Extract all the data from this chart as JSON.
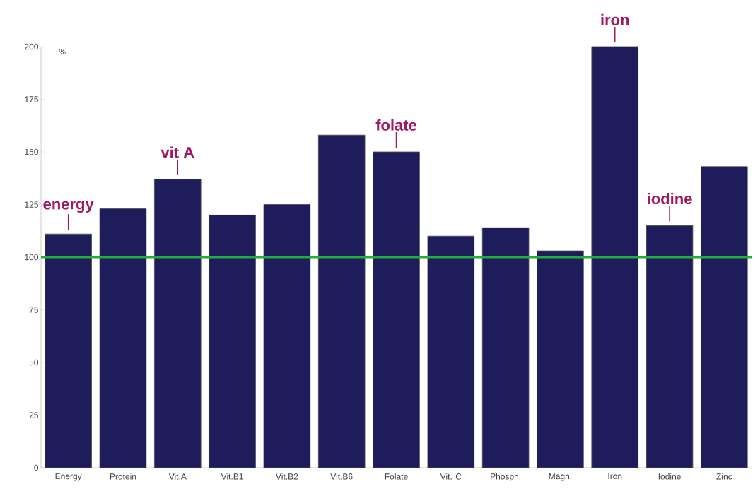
{
  "chart_data": {
    "type": "bar",
    "ylabel": "%",
    "categories": [
      "Energy",
      "Protein",
      "Vit.A",
      "Vit.B1",
      "Vit.B2",
      "Vit.B6",
      "Folate",
      "Vit. C",
      "Phosph.",
      "Magn.",
      "Iron",
      "Iodine",
      "Zinc"
    ],
    "values": [
      111,
      123,
      137,
      120,
      125,
      158,
      150,
      110,
      114,
      103,
      200,
      115,
      143
    ],
    "color": "#1f1c5c",
    "ylim": [
      0,
      200
    ],
    "yticks": [
      0,
      25,
      50,
      75,
      100,
      125,
      150,
      175,
      200
    ],
    "grid": false,
    "ref_lines": [
      {
        "axis": "y",
        "value": 100,
        "color": "#1fae3c"
      }
    ],
    "annotations": [
      {
        "text": "energy",
        "x": "Energy",
        "y": 111
      },
      {
        "text": "vit A",
        "x": "Vit.A",
        "y": 137
      },
      {
        "text": "folate",
        "x": "Folate",
        "y": 150
      },
      {
        "text": "iron",
        "x": "Iron",
        "y": 200
      },
      {
        "text": "iodine",
        "x": "Iodine",
        "y": 115
      }
    ]
  }
}
